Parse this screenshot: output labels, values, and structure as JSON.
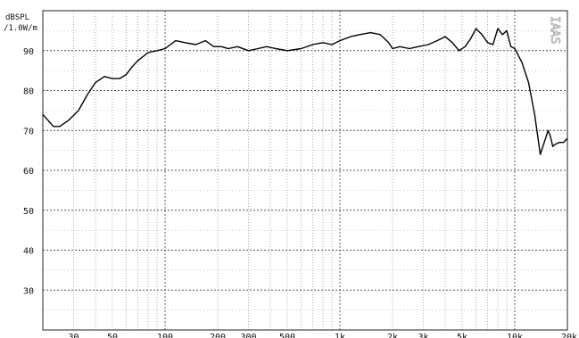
{
  "chart_data": {
    "type": "line",
    "ylabel_lines": [
      "dBSPL",
      "/1.0W/m"
    ],
    "watermark": "IAAS",
    "x_scale": "log",
    "xlim": [
      20,
      20000
    ],
    "ylim": [
      20,
      100
    ],
    "grid": true,
    "x_tick_labels": [
      {
        "value": 30,
        "label": "30"
      },
      {
        "value": 50,
        "label": "50"
      },
      {
        "value": 100,
        "label": "100"
      },
      {
        "value": 200,
        "label": "200"
      },
      {
        "value": 300,
        "label": "300"
      },
      {
        "value": 500,
        "label": "500"
      },
      {
        "value": 1000,
        "label": "1k"
      },
      {
        "value": 2000,
        "label": "2k"
      },
      {
        "value": 3000,
        "label": "3k"
      },
      {
        "value": 5000,
        "label": "5k"
      },
      {
        "value": 10000,
        "label": "10k"
      },
      {
        "value": 20000,
        "label": "20k"
      }
    ],
    "y_tick_labels": [
      {
        "value": 30,
        "label": "30"
      },
      {
        "value": 40,
        "label": "40"
      },
      {
        "value": 50,
        "label": "50"
      },
      {
        "value": 60,
        "label": "60"
      },
      {
        "value": 70,
        "label": "70"
      },
      {
        "value": 80,
        "label": "80"
      },
      {
        "value": 90,
        "label": "90"
      }
    ],
    "series": [
      {
        "color": "#000000",
        "x": [
          20,
          23,
          25,
          28,
          32,
          36,
          40,
          45,
          50,
          55,
          60,
          65,
          70,
          80,
          90,
          100,
          115,
          130,
          150,
          170,
          190,
          210,
          230,
          260,
          300,
          340,
          380,
          430,
          500,
          600,
          700,
          800,
          900,
          1000,
          1150,
          1300,
          1500,
          1700,
          1900,
          2000,
          2200,
          2500,
          2800,
          3200,
          3600,
          4000,
          4400,
          4800,
          5200,
          5600,
          6000,
          6500,
          7000,
          7500,
          8000,
          8500,
          9000,
          9500,
          10000,
          11000,
          12000,
          13000,
          14000,
          15000,
          15500,
          16000,
          16500,
          17000,
          18000,
          19000,
          20000
        ],
        "y": [
          74,
          71,
          71,
          72.5,
          75,
          79,
          82,
          83.5,
          83,
          83,
          84,
          86,
          87.5,
          89.5,
          90,
          90.5,
          92.5,
          92,
          91.5,
          92.5,
          91,
          91,
          90.5,
          91,
          90,
          90.5,
          91,
          90.5,
          90,
          90.5,
          91.5,
          92,
          91.5,
          92.5,
          93.5,
          94,
          94.5,
          94,
          92,
          90.5,
          91,
          90.5,
          91,
          91.5,
          92.5,
          93.5,
          92,
          90,
          91,
          93,
          95.5,
          94,
          92,
          91.5,
          95.5,
          94,
          95,
          91,
          90.5,
          87,
          82,
          74,
          64,
          68,
          70,
          68.5,
          66,
          66.5,
          67,
          67,
          68
        ]
      }
    ]
  }
}
